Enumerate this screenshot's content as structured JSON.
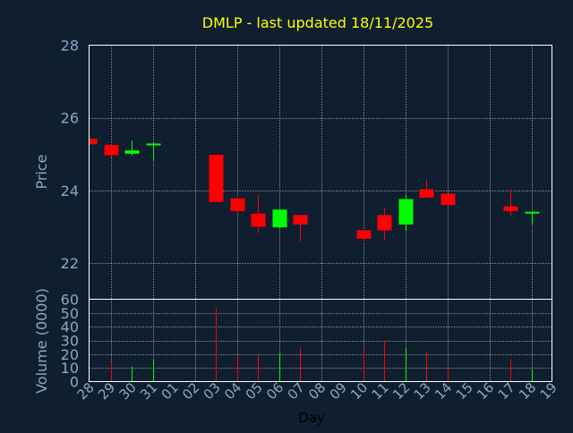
{
  "colors": {
    "background": "#0f1f30",
    "title": "#ffff00",
    "axis_text": "#8aa8c8",
    "frame": "#ffffff",
    "grid": "#c0c0c0",
    "up": "#00ff00",
    "down": "#ff0000",
    "xlabel": "#000000"
  },
  "chart_data": {
    "type": "candlestick",
    "title": "DMLP - last updated 18/11/2025",
    "xlabel": "Day",
    "grid": true,
    "price_panel": {
      "ylabel": "Price",
      "ylim": [
        21.0,
        28.0
      ],
      "yticks": [
        22,
        24,
        26,
        28
      ]
    },
    "volume_panel": {
      "ylabel": "Volume (0000)",
      "ylim": [
        0,
        60
      ],
      "yticks": [
        0,
        10,
        20,
        30,
        40,
        50,
        60
      ]
    },
    "x_ticks": [
      "28",
      "29",
      "30",
      "31",
      "01",
      "02",
      "03",
      "04",
      "05",
      "06",
      "07",
      "08",
      "09",
      "10",
      "11",
      "12",
      "13",
      "14",
      "15",
      "16",
      "17",
      "18",
      "19"
    ],
    "x_grid_every": 2,
    "candles": [
      {
        "day": "28",
        "open": 25.42,
        "high": 25.42,
        "close": 25.27,
        "low": 25.27,
        "volume": 0
      },
      {
        "day": "29",
        "open": 25.25,
        "high": 25.25,
        "close": 24.97,
        "low": 24.9,
        "volume": 14
      },
      {
        "day": "30",
        "open": 25.01,
        "high": 25.37,
        "close": 25.1,
        "low": 24.96,
        "volume": 11
      },
      {
        "day": "31",
        "open": 25.24,
        "high": 25.32,
        "close": 25.29,
        "low": 24.84,
        "volume": 16
      },
      {
        "day": "03",
        "open": 24.98,
        "high": 24.98,
        "close": 23.68,
        "low": 23.68,
        "volume": 54
      },
      {
        "day": "04",
        "open": 23.78,
        "high": 23.78,
        "close": 23.43,
        "low": 23.4,
        "volume": 19
      },
      {
        "day": "05",
        "open": 23.36,
        "high": 23.88,
        "close": 23.0,
        "low": 22.82,
        "volume": 19
      },
      {
        "day": "06",
        "open": 22.98,
        "high": 23.47,
        "close": 23.47,
        "low": 22.98,
        "volume": 21
      },
      {
        "day": "07",
        "open": 23.32,
        "high": 23.32,
        "close": 23.06,
        "low": 22.6,
        "volume": 25
      },
      {
        "day": "10",
        "open": 22.9,
        "high": 22.9,
        "close": 22.67,
        "low": 22.56,
        "volume": 24
      },
      {
        "day": "11",
        "open": 23.32,
        "high": 23.52,
        "close": 22.9,
        "low": 22.62,
        "volume": 30
      },
      {
        "day": "12",
        "open": 23.06,
        "high": 23.88,
        "close": 23.76,
        "low": 22.88,
        "volume": 25
      },
      {
        "day": "13",
        "open": 24.03,
        "high": 24.3,
        "close": 23.8,
        "low": 23.8,
        "volume": 22
      },
      {
        "day": "14",
        "open": 23.91,
        "high": 23.91,
        "close": 23.6,
        "low": 23.55,
        "volume": 11
      },
      {
        "day": "17",
        "open": 23.56,
        "high": 24.03,
        "close": 23.43,
        "low": 23.3,
        "volume": 16
      },
      {
        "day": "18",
        "open": 23.37,
        "high": 23.42,
        "close": 23.41,
        "low": 23.06,
        "volume": 9
      }
    ]
  }
}
